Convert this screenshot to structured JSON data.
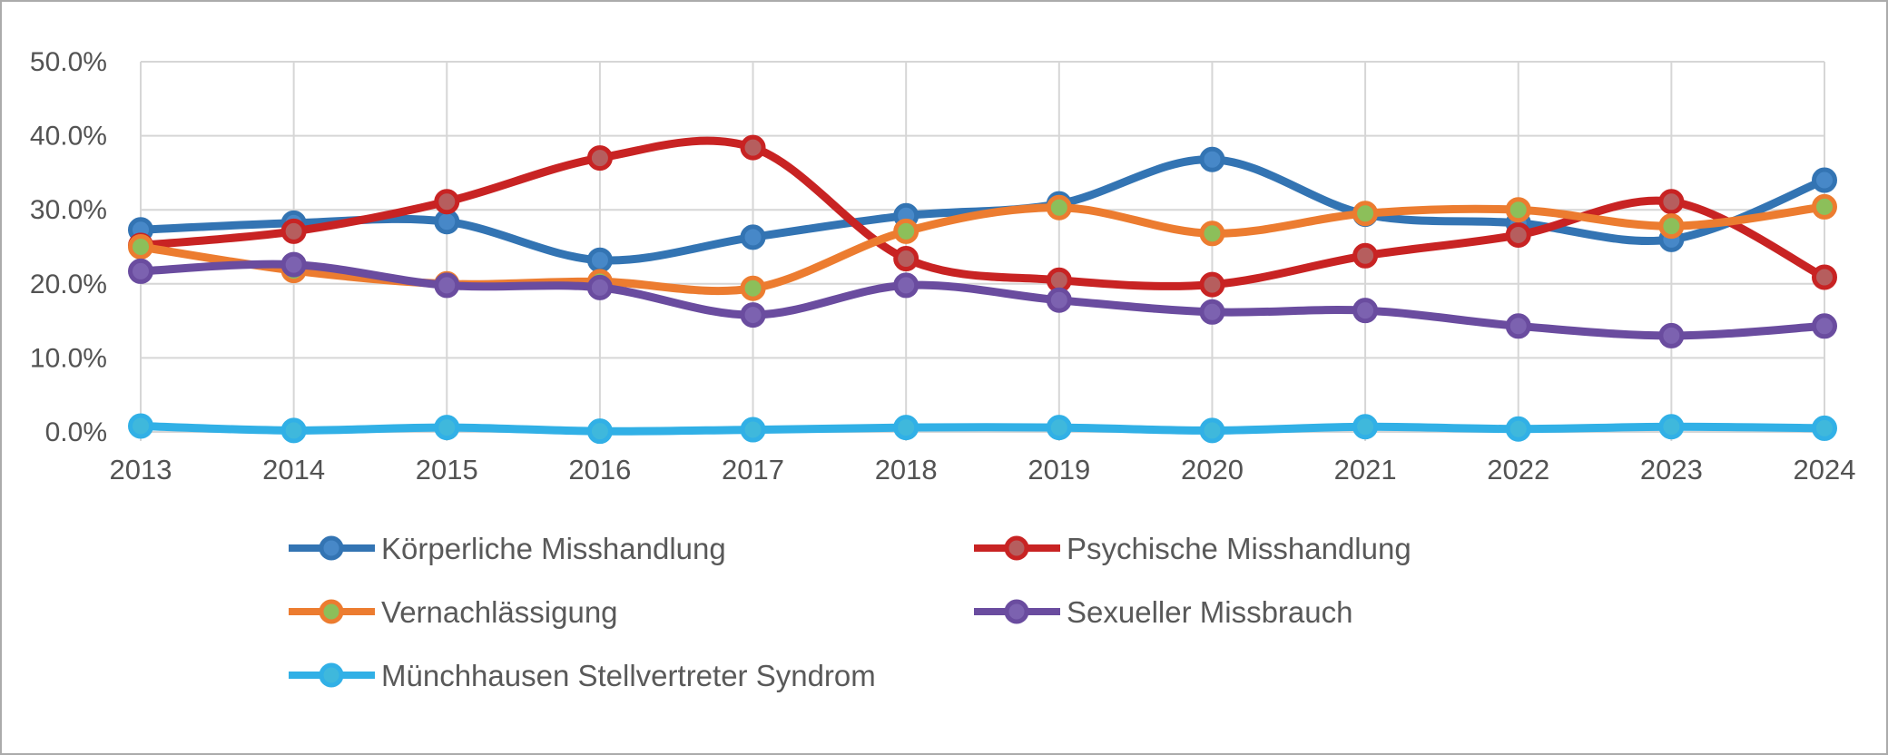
{
  "chart_data": {
    "type": "line",
    "title": "",
    "xlabel": "",
    "ylabel": "",
    "categories": [
      "2013",
      "2014",
      "2015",
      "2016",
      "2017",
      "2018",
      "2019",
      "2020",
      "2021",
      "2022",
      "2023",
      "2024"
    ],
    "y_axis": {
      "min": 0,
      "max": 50,
      "step": 10,
      "tick_labels": [
        "0.0%",
        "10.0%",
        "20.0%",
        "30.0%",
        "40.0%",
        "50.0%"
      ]
    },
    "grid": true,
    "legend_position": "bottom",
    "line_style": "smoothed-with-markers",
    "series": [
      {
        "name": "Körperliche Misshandlung",
        "line_color": "#3374B3",
        "marker_fill": "#4788C8",
        "values": [
          27.3,
          28.2,
          28.4,
          23.2,
          26.3,
          29.2,
          30.8,
          36.8,
          29.4,
          28.2,
          26.0,
          34.0
        ]
      },
      {
        "name": "Psychische Misshandlung",
        "line_color": "#C82323",
        "marker_fill": "#B65E5E",
        "values": [
          25.2,
          27.1,
          31.1,
          37.0,
          38.4,
          23.4,
          20.5,
          19.9,
          23.8,
          26.6,
          31.1,
          20.9
        ]
      },
      {
        "name": "Vernachlässigung",
        "line_color": "#EC7C30",
        "marker_fill": "#8CBF5A",
        "values": [
          25.0,
          21.8,
          20.0,
          20.3,
          19.4,
          27.1,
          30.3,
          26.8,
          29.5,
          30.0,
          27.8,
          30.4
        ]
      },
      {
        "name": "Sexueller Missbrauch",
        "line_color": "#6A4C9F",
        "marker_fill": "#7C62B0",
        "values": [
          21.7,
          22.6,
          19.8,
          19.5,
          15.8,
          19.8,
          17.8,
          16.2,
          16.4,
          14.3,
          13.0,
          14.3
        ]
      },
      {
        "name": "Münchhausen Stellvertreter Syndrom",
        "line_color": "#31B0E6",
        "marker_fill": "#3FB8DC",
        "values": [
          0.8,
          0.2,
          0.6,
          0.1,
          0.3,
          0.6,
          0.6,
          0.2,
          0.7,
          0.4,
          0.7,
          0.5
        ]
      }
    ]
  },
  "style": {
    "grid_color": "#D6D6D6",
    "axis_text_color": "#535353",
    "frame_border_color": "#ABABAB"
  }
}
